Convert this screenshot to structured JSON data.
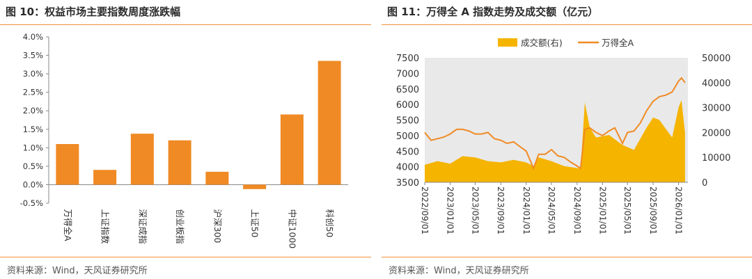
{
  "left": {
    "title": "图 10：权益市场主要指数周度涨跌幅",
    "source": "资料来源：Wind，天风证券研究所"
  },
  "right": {
    "title": "图 11：万得全 A 指数走势及成交额（亿元）",
    "source": "资料来源：Wind，天风证券研究所"
  },
  "colors": {
    "orange": "#f08a24",
    "gold": "#f5b400",
    "rule": "#f0923a"
  },
  "chart_data": [
    {
      "type": "bar",
      "title": "权益市场主要指数周度涨跌幅",
      "categories": [
        "万得全A",
        "上证指数",
        "深证成指",
        "创业板指",
        "沪深300",
        "上证50",
        "中证1000",
        "科创50"
      ],
      "values": [
        1.1,
        0.4,
        1.38,
        1.2,
        0.35,
        -0.12,
        1.9,
        3.35
      ],
      "ylim": [
        -0.5,
        4.0
      ],
      "yticks": [
        "-0.5%",
        "0.0%",
        "0.5%",
        "1.0%",
        "1.5%",
        "2.0%",
        "2.5%",
        "3.0%",
        "3.5%",
        "4.0%"
      ],
      "legend": "none",
      "grid": false
    },
    {
      "type": "line",
      "title": "万得全 A 指数走势及成交额（亿元）",
      "legend": "top",
      "legend_entries": [
        "成交额(右)",
        "万得全A"
      ],
      "x_ticks": [
        "2022/09/01",
        "2023/01/01",
        "2023/05/01",
        "2023/09/01",
        "2024/01/01",
        "2024/05/01",
        "2024/09/01",
        "2025/01/01",
        "2025/05/01",
        "2025/09/01",
        "2026/01/01"
      ],
      "y_left": {
        "ticks": [
          "3500",
          "4000",
          "4500",
          "5000",
          "5500",
          "6000",
          "6500",
          "7000",
          "7500"
        ],
        "lim": [
          3500,
          7500
        ]
      },
      "y_right": {
        "ticks": [
          "0",
          "10000",
          "20000",
          "30000",
          "40000",
          "50000"
        ],
        "lim": [
          0,
          50000
        ]
      },
      "series": [
        {
          "name": "万得全A",
          "axis": "left",
          "x": [
            "2022-09-01",
            "2022-10-01",
            "2022-11-01",
            "2022-12-01",
            "2023-01-01",
            "2023-02-01",
            "2023-03-01",
            "2023-04-01",
            "2023-05-01",
            "2023-06-01",
            "2023-07-01",
            "2023-08-01",
            "2023-09-01",
            "2023-10-01",
            "2023-11-01",
            "2023-12-01",
            "2024-01-01",
            "2024-02-05",
            "2024-03-01",
            "2024-04-01",
            "2024-05-01",
            "2024-06-01",
            "2024-07-01",
            "2024-08-01",
            "2024-09-18",
            "2024-10-08",
            "2024-11-01",
            "2024-12-01",
            "2025-01-01",
            "2025-02-01",
            "2025-03-01",
            "2025-04-07",
            "2025-05-01",
            "2025-06-01",
            "2025-07-01",
            "2025-08-01",
            "2025-09-01",
            "2025-10-01",
            "2025-11-01",
            "2025-12-01",
            "2026-01-01",
            "2026-01-15",
            "2026-02-01"
          ],
          "values": [
            5100,
            4850,
            4900,
            4950,
            5050,
            5200,
            5200,
            5150,
            5050,
            5050,
            5100,
            4900,
            4850,
            4750,
            4800,
            4650,
            4500,
            3950,
            4400,
            4400,
            4550,
            4350,
            4300,
            4150,
            3950,
            5200,
            5250,
            5100,
            5000,
            5150,
            5250,
            4750,
            5100,
            5150,
            5400,
            5800,
            6100,
            6250,
            6300,
            6400,
            6750,
            6850,
            6700
          ]
        },
        {
          "name": "成交额(右)",
          "axis": "right",
          "x": [
            "2022-09-01",
            "2022-11-01",
            "2023-01-01",
            "2023-03-01",
            "2023-05-01",
            "2023-07-01",
            "2023-09-01",
            "2023-11-01",
            "2024-01-01",
            "2024-02-05",
            "2024-03-01",
            "2024-05-01",
            "2024-07-01",
            "2024-09-18",
            "2024-10-08",
            "2024-11-01",
            "2024-12-01",
            "2025-02-01",
            "2025-04-07",
            "2025-06-01",
            "2025-08-01",
            "2025-09-01",
            "2025-10-01",
            "2025-12-01",
            "2026-01-01",
            "2026-01-15",
            "2026-02-01"
          ],
          "values": [
            7000,
            8500,
            7500,
            10500,
            10000,
            8500,
            8000,
            9000,
            8000,
            6500,
            10000,
            8500,
            6500,
            5500,
            32000,
            22000,
            18000,
            19000,
            15000,
            13000,
            22000,
            26000,
            25000,
            18000,
            30000,
            33000,
            20000
          ]
        }
      ]
    }
  ]
}
